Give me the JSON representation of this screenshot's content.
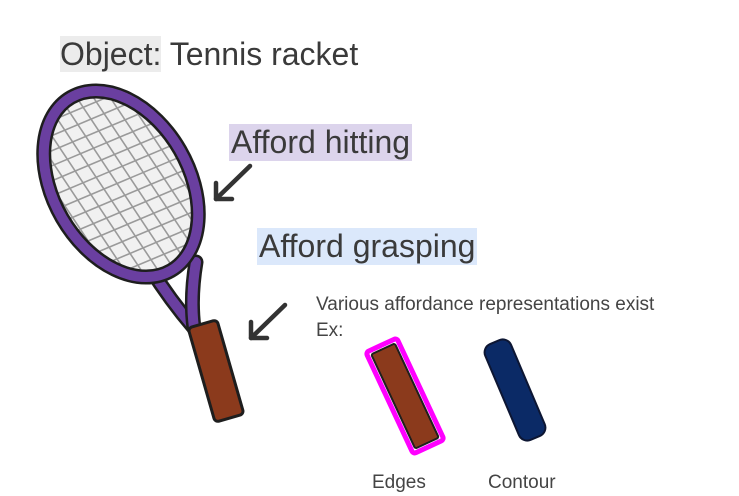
{
  "title": {
    "prefix": "Object:",
    "value": "Tennis racket"
  },
  "labels": {
    "hitting": "Afford hitting",
    "grasping": "Afford grasping"
  },
  "note": {
    "line1": "Various affordance representations exist",
    "line2": "Ex:"
  },
  "examples": [
    {
      "caption": "Edges",
      "outline_color": "#ff00ff"
    },
    {
      "caption": "Contour",
      "fill_color": "#0b2a66"
    }
  ],
  "colors": {
    "frame": "#6a3fa0",
    "handle": "#8b3a1c",
    "strings": "#9a9a9a"
  }
}
